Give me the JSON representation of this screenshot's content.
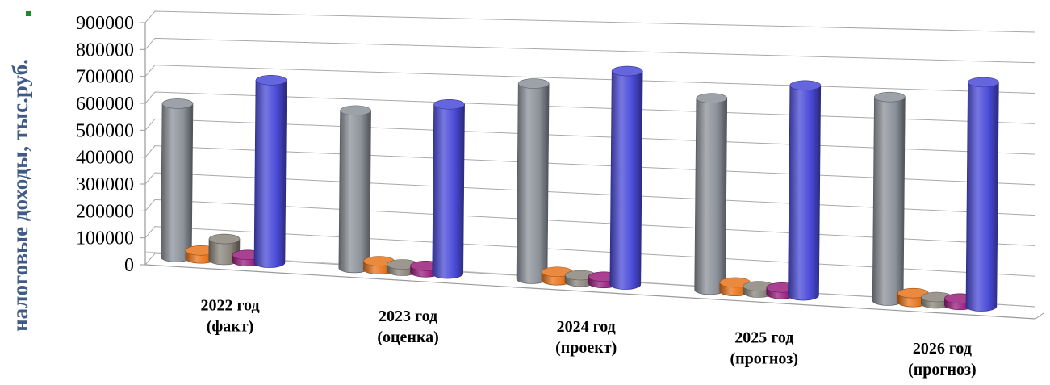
{
  "chart_data": {
    "type": "bar",
    "style": "3d-cylinder",
    "ylabel": "налоговые доходы, тыс.руб.",
    "ylim": [
      0,
      900000
    ],
    "yticks": [
      "0",
      "100000",
      "200000",
      "300000",
      "400000",
      "500000",
      "600000",
      "700000",
      "800000",
      "900000"
    ],
    "grid": true,
    "categories": [
      [
        "2022 год",
        "(факт)"
      ],
      [
        "2023 год",
        "(оценка)"
      ],
      [
        "2024 год",
        "(проект)"
      ],
      [
        "2025 год",
        "(прогноз)"
      ],
      [
        "2026 год",
        "(прогноз)"
      ]
    ],
    "series": [
      {
        "color": "#8c929a",
        "values": [
          575000,
          575000,
          695000,
          665000,
          690000
        ]
      },
      {
        "color": "#e8741c",
        "values": [
          30000,
          30000,
          30000,
          30000,
          30000
        ]
      },
      {
        "color": "#8a867c",
        "values": [
          78000,
          18000,
          20000,
          20000,
          20000
        ]
      },
      {
        "color": "#9a1f7e",
        "values": [
          12000,
          12000,
          12000,
          12000,
          12000
        ]
      },
      {
        "color": "#4a4ad8",
        "values": [
          675000,
          610000,
          750000,
          720000,
          750000
        ]
      }
    ]
  }
}
